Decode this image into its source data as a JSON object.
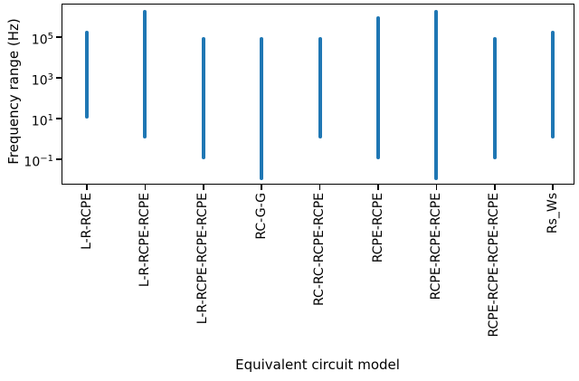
{
  "chart_data": {
    "type": "bar",
    "subtype": "vertical-range-bars",
    "title": "",
    "xlabel": "Equivalent circuit model",
    "ylabel": "Frequency range (Hz)",
    "yscale": "log",
    "ylim_log10": [
      -2.24,
      6.63
    ],
    "ytick_exponents": [
      5,
      3,
      1,
      -1
    ],
    "ytick_labels_plain": [
      "10^5",
      "10^3",
      "10^1",
      "10^-1"
    ],
    "grid": false,
    "legend": "none",
    "categories": [
      "L-R-RCPE",
      "L-R-RCPE-RCPE",
      "L-R-RCPE-RCPE-RCPE",
      "RC-G-G",
      "RC-RC-RCPE-RCPE",
      "RCPE-RCPE",
      "RCPE-RCPE-RCPE",
      "RCPE-RCPE-RCPE-RCPE",
      "Rs_Ws"
    ],
    "series": [
      {
        "name": "Frequency range (Hz)",
        "ranges_hz": [
          [
            10,
            200000
          ],
          [
            1,
            2000000
          ],
          [
            0.1,
            100000
          ],
          [
            0.01,
            100000
          ],
          [
            1,
            100000
          ],
          [
            0.1,
            1000000
          ],
          [
            0.01,
            2000000
          ],
          [
            0.1,
            100000
          ],
          [
            1,
            200000
          ]
        ]
      }
    ],
    "colors": {
      "bar": "#1f77b4",
      "axis": "#000000",
      "text": "#000000",
      "background": "#ffffff"
    }
  }
}
